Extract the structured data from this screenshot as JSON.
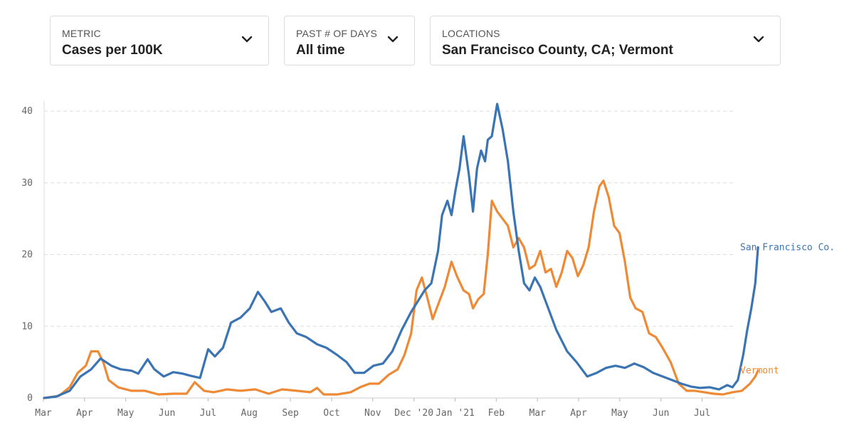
{
  "filters": {
    "metric": {
      "label": "METRIC",
      "value": "Cases per 100K"
    },
    "days": {
      "label": "PAST # OF DAYS",
      "value": "All time"
    },
    "locations": {
      "label": "LOCATIONS",
      "value": "San Francisco County, CA; Vermont"
    }
  },
  "icons": {
    "dropdown": "chevron-down-icon"
  },
  "chart_data": {
    "type": "line",
    "title": "",
    "xlabel": "",
    "ylabel": "",
    "x_ticks": [
      "Mar",
      "Apr",
      "May",
      "Jun",
      "Jul",
      "Aug",
      "Sep",
      "Oct",
      "Nov",
      "Dec '20",
      "Jan '21",
      "Feb",
      "Mar",
      "Apr",
      "May",
      "Jun",
      "Jul"
    ],
    "y_ticks": [
      0,
      10,
      20,
      30,
      40
    ],
    "ylim": [
      0,
      41
    ],
    "x_range": [
      "2020-03-01",
      "2021-07-28"
    ],
    "grid": "horizontal dashed",
    "series": [
      {
        "name": "San Francisco Co.",
        "color": "#3b74b3",
        "points": [
          [
            "2020-03-01",
            0.0
          ],
          [
            "2020-03-10",
            0.2
          ],
          [
            "2020-03-20",
            1.0
          ],
          [
            "2020-03-28",
            3.0
          ],
          [
            "2020-04-05",
            4.0
          ],
          [
            "2020-04-12",
            5.5
          ],
          [
            "2020-04-20",
            4.5
          ],
          [
            "2020-04-27",
            4.0
          ],
          [
            "2020-05-05",
            3.8
          ],
          [
            "2020-05-10",
            3.4
          ],
          [
            "2020-05-17",
            5.4
          ],
          [
            "2020-05-22",
            4.0
          ],
          [
            "2020-05-29",
            3.0
          ],
          [
            "2020-06-05",
            3.6
          ],
          [
            "2020-06-12",
            3.4
          ],
          [
            "2020-06-18",
            3.1
          ],
          [
            "2020-06-25",
            2.8
          ],
          [
            "2020-07-01",
            6.8
          ],
          [
            "2020-07-06",
            5.8
          ],
          [
            "2020-07-12",
            7.0
          ],
          [
            "2020-07-18",
            10.5
          ],
          [
            "2020-07-25",
            11.2
          ],
          [
            "2020-08-01",
            12.5
          ],
          [
            "2020-08-07",
            14.8
          ],
          [
            "2020-08-12",
            13.5
          ],
          [
            "2020-08-17",
            12.0
          ],
          [
            "2020-08-24",
            12.5
          ],
          [
            "2020-08-30",
            10.5
          ],
          [
            "2020-09-05",
            9.0
          ],
          [
            "2020-09-12",
            8.5
          ],
          [
            "2020-09-20",
            7.5
          ],
          [
            "2020-09-27",
            7.0
          ],
          [
            "2020-10-05",
            6.0
          ],
          [
            "2020-10-12",
            5.0
          ],
          [
            "2020-10-18",
            3.5
          ],
          [
            "2020-10-25",
            3.5
          ],
          [
            "2020-11-01",
            4.5
          ],
          [
            "2020-11-08",
            4.8
          ],
          [
            "2020-11-15",
            6.5
          ],
          [
            "2020-11-22",
            9.5
          ],
          [
            "2020-11-29",
            12.0
          ],
          [
            "2020-12-04",
            13.5
          ],
          [
            "2020-12-09",
            15.0
          ],
          [
            "2020-12-14",
            16.0
          ],
          [
            "2020-12-19",
            20.5
          ],
          [
            "2020-12-22",
            25.5
          ],
          [
            "2020-12-26",
            27.5
          ],
          [
            "2020-12-29",
            25.5
          ],
          [
            "2021-01-01",
            29.0
          ],
          [
            "2021-01-04",
            32.0
          ],
          [
            "2021-01-07",
            36.5
          ],
          [
            "2021-01-11",
            31.0
          ],
          [
            "2021-01-14",
            26.0
          ],
          [
            "2021-01-17",
            32.0
          ],
          [
            "2021-01-20",
            34.5
          ],
          [
            "2021-01-23",
            33.0
          ],
          [
            "2021-01-25",
            36.0
          ],
          [
            "2021-01-28",
            36.5
          ],
          [
            "2021-02-01",
            41.0
          ],
          [
            "2021-02-05",
            37.5
          ],
          [
            "2021-02-09",
            33.0
          ],
          [
            "2021-02-13",
            26.0
          ],
          [
            "2021-02-17",
            20.5
          ],
          [
            "2021-02-21",
            16.0
          ],
          [
            "2021-02-25",
            15.0
          ],
          [
            "2021-03-01",
            16.8
          ],
          [
            "2021-03-05",
            15.5
          ],
          [
            "2021-03-10",
            13.0
          ],
          [
            "2021-03-17",
            9.5
          ],
          [
            "2021-03-25",
            6.5
          ],
          [
            "2021-04-01",
            5.0
          ],
          [
            "2021-04-09",
            3.0
          ],
          [
            "2021-04-16",
            3.5
          ],
          [
            "2021-04-23",
            4.2
          ],
          [
            "2021-04-30",
            4.5
          ],
          [
            "2021-05-07",
            4.2
          ],
          [
            "2021-05-14",
            4.8
          ],
          [
            "2021-05-21",
            4.3
          ],
          [
            "2021-05-28",
            3.5
          ],
          [
            "2021-06-04",
            3.0
          ],
          [
            "2021-06-11",
            2.5
          ],
          [
            "2021-06-18",
            2.0
          ],
          [
            "2021-06-25",
            1.6
          ],
          [
            "2021-07-02",
            1.4
          ],
          [
            "2021-07-09",
            1.5
          ],
          [
            "2021-07-16",
            1.2
          ],
          [
            "2021-07-22",
            1.8
          ],
          [
            "2021-07-26",
            1.5
          ],
          [
            "2021-07-30",
            2.5
          ],
          [
            "2021-08-03",
            6.0
          ],
          [
            "2021-08-06",
            9.5
          ],
          [
            "2021-08-09",
            12.5
          ],
          [
            "2021-08-12",
            16.0
          ],
          [
            "2021-08-14",
            21.0
          ]
        ]
      },
      {
        "name": "Vermont",
        "color": "#ee8a36",
        "points": [
          [
            "2020-03-01",
            0.0
          ],
          [
            "2020-03-12",
            0.3
          ],
          [
            "2020-03-20",
            1.5
          ],
          [
            "2020-03-26",
            3.5
          ],
          [
            "2020-04-01",
            4.5
          ],
          [
            "2020-04-05",
            6.5
          ],
          [
            "2020-04-10",
            6.5
          ],
          [
            "2020-04-14",
            5.0
          ],
          [
            "2020-04-18",
            2.5
          ],
          [
            "2020-04-25",
            1.5
          ],
          [
            "2020-05-05",
            1.0
          ],
          [
            "2020-05-15",
            1.0
          ],
          [
            "2020-05-25",
            0.5
          ],
          [
            "2020-06-05",
            0.6
          ],
          [
            "2020-06-15",
            0.6
          ],
          [
            "2020-06-21",
            2.2
          ],
          [
            "2020-06-28",
            1.0
          ],
          [
            "2020-07-05",
            0.8
          ],
          [
            "2020-07-15",
            1.2
          ],
          [
            "2020-07-25",
            1.0
          ],
          [
            "2020-08-05",
            1.2
          ],
          [
            "2020-08-15",
            0.6
          ],
          [
            "2020-08-25",
            1.2
          ],
          [
            "2020-09-05",
            1.0
          ],
          [
            "2020-09-15",
            0.8
          ],
          [
            "2020-09-20",
            1.4
          ],
          [
            "2020-09-25",
            0.5
          ],
          [
            "2020-10-05",
            0.5
          ],
          [
            "2020-10-15",
            0.8
          ],
          [
            "2020-10-22",
            1.5
          ],
          [
            "2020-10-29",
            2.0
          ],
          [
            "2020-11-05",
            2.0
          ],
          [
            "2020-11-12",
            3.2
          ],
          [
            "2020-11-19",
            4.0
          ],
          [
            "2020-11-24",
            6.0
          ],
          [
            "2020-11-29",
            9.0
          ],
          [
            "2020-12-03",
            15.0
          ],
          [
            "2020-12-07",
            16.8
          ],
          [
            "2020-12-11",
            14.0
          ],
          [
            "2020-12-15",
            11.0
          ],
          [
            "2020-12-19",
            13.0
          ],
          [
            "2020-12-24",
            15.5
          ],
          [
            "2020-12-29",
            19.0
          ],
          [
            "2021-01-02",
            17.0
          ],
          [
            "2021-01-07",
            15.0
          ],
          [
            "2021-01-11",
            14.5
          ],
          [
            "2021-01-14",
            12.5
          ],
          [
            "2021-01-18",
            13.8
          ],
          [
            "2021-01-22",
            14.5
          ],
          [
            "2021-01-25",
            20.0
          ],
          [
            "2021-01-28",
            27.5
          ],
          [
            "2021-02-01",
            26.0
          ],
          [
            "2021-02-05",
            25.0
          ],
          [
            "2021-02-09",
            24.0
          ],
          [
            "2021-02-13",
            21.0
          ],
          [
            "2021-02-17",
            22.3
          ],
          [
            "2021-02-21",
            21.0
          ],
          [
            "2021-02-25",
            18.0
          ],
          [
            "2021-03-01",
            18.5
          ],
          [
            "2021-03-05",
            20.5
          ],
          [
            "2021-03-09",
            17.5
          ],
          [
            "2021-03-13",
            18.0
          ],
          [
            "2021-03-17",
            15.5
          ],
          [
            "2021-03-21",
            17.5
          ],
          [
            "2021-03-25",
            20.5
          ],
          [
            "2021-03-29",
            19.5
          ],
          [
            "2021-04-02",
            17.0
          ],
          [
            "2021-04-06",
            18.5
          ],
          [
            "2021-04-10",
            21.0
          ],
          [
            "2021-04-14",
            26.0
          ],
          [
            "2021-04-18",
            29.5
          ],
          [
            "2021-04-21",
            30.3
          ],
          [
            "2021-04-25",
            28.0
          ],
          [
            "2021-04-29",
            24.0
          ],
          [
            "2021-05-03",
            23.0
          ],
          [
            "2021-05-07",
            19.0
          ],
          [
            "2021-05-11",
            14.0
          ],
          [
            "2021-05-15",
            12.5
          ],
          [
            "2021-05-20",
            12.0
          ],
          [
            "2021-05-25",
            9.0
          ],
          [
            "2021-05-30",
            8.5
          ],
          [
            "2021-06-04",
            7.0
          ],
          [
            "2021-06-10",
            5.0
          ],
          [
            "2021-06-16",
            2.0
          ],
          [
            "2021-06-22",
            1.0
          ],
          [
            "2021-06-28",
            1.0
          ],
          [
            "2021-07-05",
            0.8
          ],
          [
            "2021-07-12",
            0.6
          ],
          [
            "2021-07-19",
            0.5
          ],
          [
            "2021-07-26",
            0.8
          ],
          [
            "2021-08-02",
            1.0
          ],
          [
            "2021-08-08",
            2.0
          ],
          [
            "2021-08-12",
            3.0
          ],
          [
            "2021-08-14",
            3.8
          ]
        ]
      }
    ]
  }
}
